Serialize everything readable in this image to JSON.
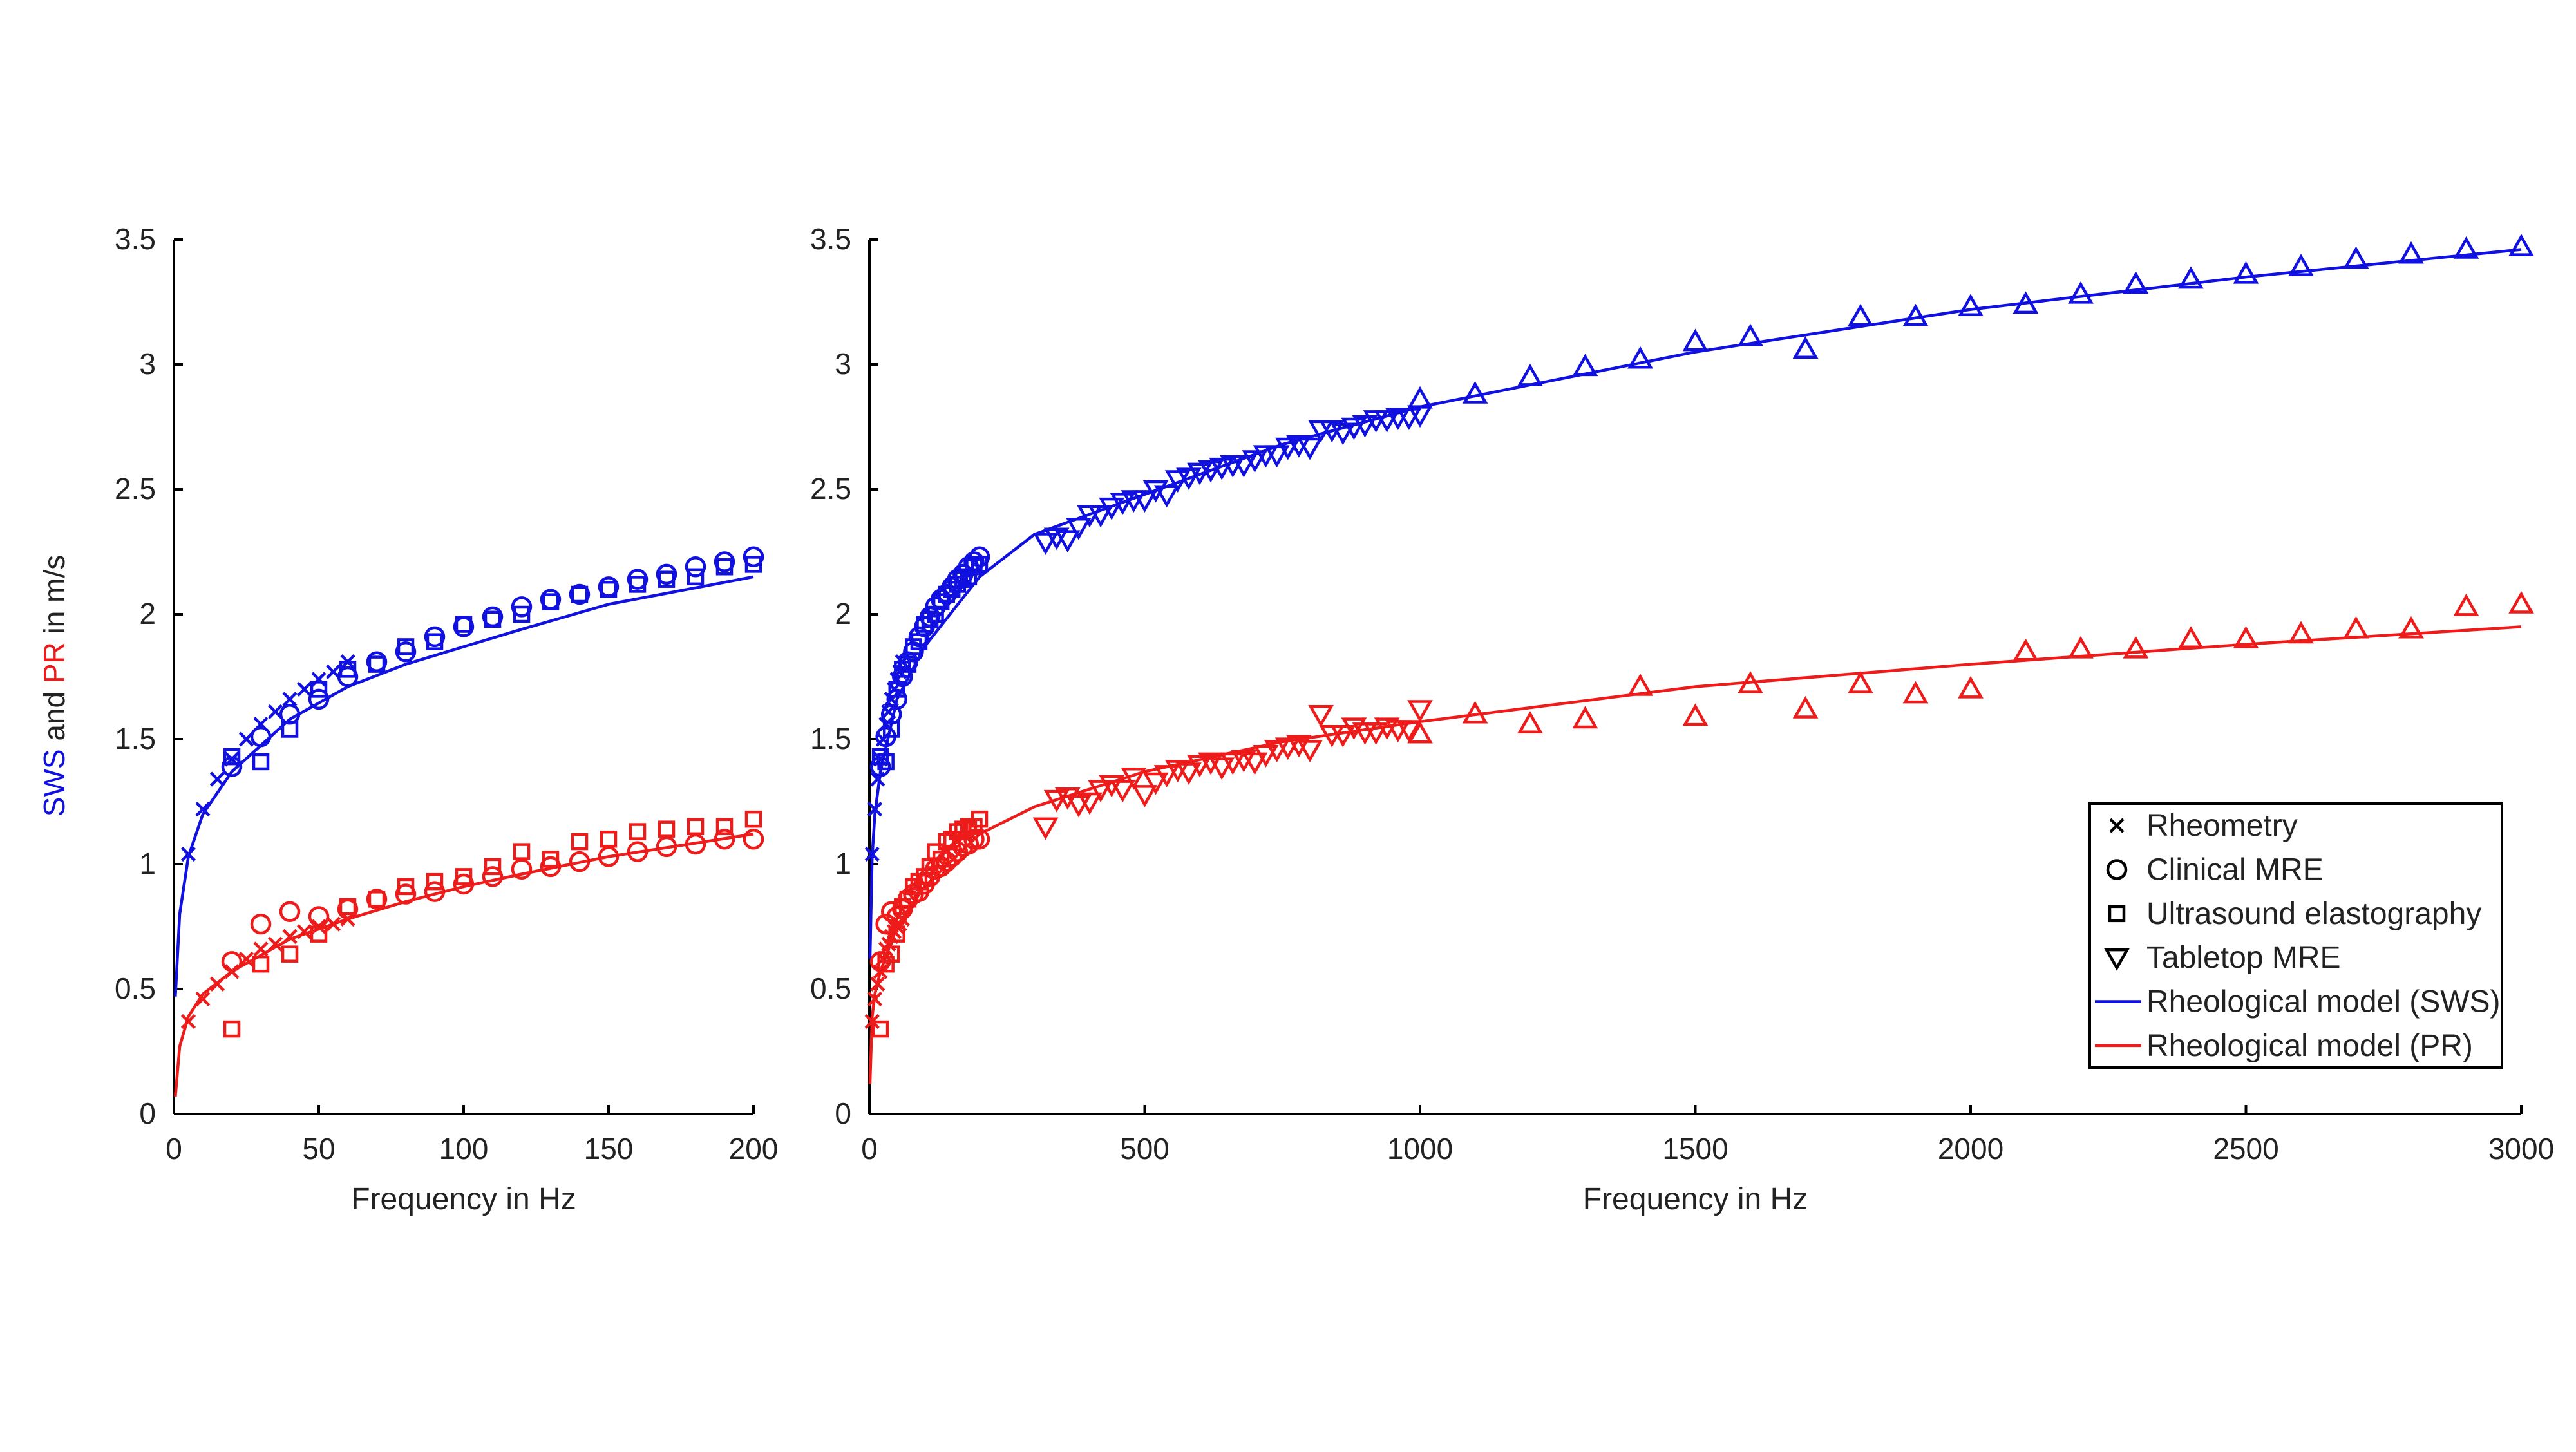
{
  "ylabel": {
    "sws": "SWS",
    "and": " and ",
    "pr": "PR",
    "units": " in m/s"
  },
  "colors": {
    "sws": "#1010e0",
    "pr": "#ee1b1b",
    "axis": "#000000"
  },
  "legend": [
    {
      "label": "Rheometry",
      "marker": "x"
    },
    {
      "label": "Clinical MRE",
      "marker": "circle"
    },
    {
      "label": "Ultrasound elastography",
      "marker": "square"
    },
    {
      "label": "Tabletop MRE",
      "marker": "triangle-down"
    },
    {
      "label": "Rheological model (SWS)",
      "marker": "line-sws"
    },
    {
      "label": "Rheological model (PR)",
      "marker": "line-pr"
    }
  ],
  "chart_data": [
    {
      "type": "scatter",
      "xlabel": "Frequency in Hz",
      "xlim": [
        0,
        200
      ],
      "ylim": [
        0,
        3.5
      ],
      "xticks": [
        0,
        50,
        100,
        150,
        200
      ],
      "xtick_labels": [
        "0",
        "50",
        "100",
        "150",
        "200"
      ],
      "yticks": [
        0,
        0.5,
        1,
        1.5,
        2,
        2.5,
        3,
        3.5
      ],
      "ytick_labels": [
        "0",
        "0.5",
        "1",
        "1.5",
        "2",
        "2.5",
        "3",
        "3.5"
      ],
      "grid": false,
      "series": [
        {
          "name": "Rheometry",
          "property": "SWS",
          "marker": "x",
          "x": [
            5,
            10,
            15,
            20,
            25,
            30,
            35,
            40,
            45,
            50,
            55,
            60
          ],
          "y": [
            1.04,
            1.22,
            1.34,
            1.42,
            1.5,
            1.56,
            1.61,
            1.66,
            1.7,
            1.74,
            1.77,
            1.81
          ]
        },
        {
          "name": "Clinical MRE",
          "property": "SWS",
          "marker": "circle",
          "x": [
            20,
            30,
            40,
            50,
            60,
            70,
            80,
            90,
            100,
            110,
            120,
            130,
            140,
            150,
            160,
            170,
            180,
            190,
            200
          ],
          "y": [
            1.39,
            1.51,
            1.6,
            1.66,
            1.75,
            1.81,
            1.85,
            1.91,
            1.95,
            1.99,
            2.03,
            2.06,
            2.08,
            2.11,
            2.14,
            2.16,
            2.19,
            2.21,
            2.23
          ]
        },
        {
          "name": "Ultrasound elastography",
          "property": "SWS",
          "marker": "square",
          "x": [
            20,
            30,
            40,
            50,
            60,
            70,
            80,
            90,
            100,
            110,
            120,
            130,
            140,
            150,
            160,
            170,
            180,
            190,
            200
          ],
          "y": [
            1.43,
            1.41,
            1.54,
            1.7,
            1.78,
            1.8,
            1.87,
            1.89,
            1.96,
            1.98,
            2.0,
            2.05,
            2.08,
            2.1,
            2.12,
            2.14,
            2.15,
            2.19,
            2.2
          ]
        },
        {
          "name": "Rheometry",
          "property": "PR",
          "marker": "x",
          "x": [
            5,
            10,
            15,
            20,
            25,
            30,
            35,
            40,
            45,
            50,
            55,
            60
          ],
          "y": [
            0.37,
            0.46,
            0.52,
            0.57,
            0.62,
            0.66,
            0.68,
            0.71,
            0.73,
            0.75,
            0.76,
            0.78
          ]
        },
        {
          "name": "Clinical MRE",
          "property": "PR",
          "marker": "circle",
          "x": [
            20,
            30,
            40,
            50,
            60,
            70,
            80,
            90,
            100,
            110,
            120,
            130,
            140,
            150,
            160,
            170,
            180,
            190,
            200
          ],
          "y": [
            0.61,
            0.76,
            0.81,
            0.79,
            0.82,
            0.86,
            0.88,
            0.89,
            0.92,
            0.95,
            0.98,
            0.99,
            1.01,
            1.03,
            1.05,
            1.07,
            1.08,
            1.1,
            1.1
          ]
        },
        {
          "name": "Ultrasound elastography",
          "property": "PR",
          "marker": "square",
          "x": [
            20,
            30,
            40,
            50,
            60,
            70,
            80,
            90,
            100,
            110,
            120,
            130,
            140,
            150,
            160,
            170,
            180,
            190,
            200
          ],
          "y": [
            0.34,
            0.6,
            0.64,
            0.72,
            0.83,
            0.86,
            0.91,
            0.93,
            0.95,
            0.99,
            1.05,
            1.02,
            1.09,
            1.1,
            1.13,
            1.14,
            1.15,
            1.15,
            1.18
          ]
        }
      ],
      "model_curves": [
        {
          "name": "Rheological model (SWS)",
          "property": "SWS",
          "x": [
            0.5,
            2,
            5,
            10,
            20,
            40,
            60,
            80,
            100,
            120,
            150,
            200
          ],
          "y": [
            0.47,
            0.8,
            1.03,
            1.2,
            1.37,
            1.58,
            1.71,
            1.8,
            1.87,
            1.94,
            2.04,
            2.15
          ]
        },
        {
          "name": "Rheological model (PR)",
          "property": "PR",
          "x": [
            0.5,
            2,
            5,
            10,
            20,
            40,
            60,
            80,
            100,
            120,
            150,
            200
          ],
          "y": [
            0.07,
            0.27,
            0.39,
            0.48,
            0.57,
            0.7,
            0.78,
            0.85,
            0.91,
            0.96,
            1.03,
            1.12
          ]
        }
      ]
    },
    {
      "type": "scatter",
      "xlabel": "Frequency in Hz",
      "xlim": [
        0,
        3000
      ],
      "ylim": [
        0,
        3.5
      ],
      "xticks": [
        0,
        500,
        1000,
        1500,
        2000,
        2500,
        3000
      ],
      "xtick_labels": [
        "0",
        "500",
        "1000",
        "1500",
        "2000",
        "2500",
        "3000"
      ],
      "yticks": [
        0,
        0.5,
        1,
        1.5,
        2,
        2.5,
        3,
        3.5
      ],
      "ytick_labels": [
        "0",
        "0.5",
        "1",
        "1.5",
        "2",
        "2.5",
        "3",
        "3.5"
      ],
      "grid": false,
      "legend_position": "lower-right",
      "series": [
        {
          "name": "Rheometry",
          "property": "SWS",
          "marker": "x",
          "x": [
            5,
            10,
            15,
            20,
            25,
            30,
            35,
            40,
            45,
            50,
            55,
            60
          ],
          "y": [
            1.04,
            1.22,
            1.34,
            1.42,
            1.5,
            1.56,
            1.61,
            1.66,
            1.7,
            1.74,
            1.77,
            1.81
          ]
        },
        {
          "name": "Clinical MRE",
          "property": "SWS",
          "marker": "circle",
          "x": [
            20,
            30,
            40,
            50,
            60,
            70,
            80,
            90,
            100,
            110,
            120,
            130,
            140,
            150,
            160,
            170,
            180,
            190,
            200
          ],
          "y": [
            1.39,
            1.51,
            1.6,
            1.66,
            1.75,
            1.81,
            1.85,
            1.91,
            1.95,
            1.99,
            2.03,
            2.06,
            2.08,
            2.11,
            2.14,
            2.16,
            2.19,
            2.21,
            2.23
          ]
        },
        {
          "name": "Ultrasound elastography",
          "property": "SWS",
          "marker": "square",
          "x": [
            20,
            30,
            40,
            50,
            60,
            70,
            80,
            90,
            100,
            110,
            120,
            130,
            140,
            150,
            160,
            170,
            180,
            190,
            200
          ],
          "y": [
            1.43,
            1.41,
            1.54,
            1.7,
            1.78,
            1.8,
            1.87,
            1.89,
            1.96,
            1.98,
            2.0,
            2.05,
            2.08,
            2.1,
            2.12,
            2.14,
            2.15,
            2.19,
            2.2
          ]
        },
        {
          "name": "Tabletop MRE",
          "property": "SWS",
          "marker": "triangle-down",
          "x": [
            320,
            340,
            360,
            380,
            400,
            420,
            440,
            460,
            480,
            500,
            520,
            540,
            560,
            580,
            600,
            620,
            640,
            660,
            680,
            700,
            720,
            740,
            760,
            780,
            800,
            820,
            840,
            860,
            880,
            900,
            920,
            940,
            960,
            980,
            1000
          ],
          "y": [
            2.29,
            2.31,
            2.3,
            2.35,
            2.4,
            2.4,
            2.43,
            2.45,
            2.46,
            2.46,
            2.5,
            2.48,
            2.54,
            2.55,
            2.57,
            2.58,
            2.59,
            2.6,
            2.6,
            2.62,
            2.64,
            2.64,
            2.67,
            2.68,
            2.67,
            2.74,
            2.74,
            2.73,
            2.75,
            2.76,
            2.78,
            2.78,
            2.79,
            2.79,
            2.8
          ]
        },
        {
          "name": "Tabletop MRE",
          "property": "SWS",
          "marker": "triangle-up",
          "x": [
            1000,
            1100,
            1200,
            1300,
            1400,
            1500,
            1600,
            1700,
            1800,
            1900,
            2000,
            2100,
            2200,
            2300,
            2400,
            2500,
            2600,
            2700,
            2800,
            2900,
            3000
          ],
          "y": [
            2.86,
            2.88,
            2.95,
            2.99,
            3.02,
            3.09,
            3.11,
            3.06,
            3.19,
            3.19,
            3.23,
            3.24,
            3.28,
            3.32,
            3.34,
            3.36,
            3.39,
            3.42,
            3.44,
            3.46,
            3.47
          ]
        },
        {
          "name": "Rheometry",
          "property": "PR",
          "marker": "x",
          "x": [
            5,
            10,
            15,
            20,
            25,
            30,
            35,
            40,
            45,
            50,
            55,
            60
          ],
          "y": [
            0.37,
            0.46,
            0.52,
            0.57,
            0.62,
            0.66,
            0.68,
            0.71,
            0.73,
            0.75,
            0.76,
            0.78
          ]
        },
        {
          "name": "Clinical MRE",
          "property": "PR",
          "marker": "circle",
          "x": [
            20,
            30,
            40,
            50,
            60,
            70,
            80,
            90,
            100,
            110,
            120,
            130,
            140,
            150,
            160,
            170,
            180,
            190,
            200
          ],
          "y": [
            0.61,
            0.76,
            0.81,
            0.79,
            0.82,
            0.86,
            0.88,
            0.89,
            0.92,
            0.95,
            0.98,
            0.99,
            1.01,
            1.03,
            1.05,
            1.07,
            1.08,
            1.1,
            1.1
          ]
        },
        {
          "name": "Ultrasound elastography",
          "property": "PR",
          "marker": "square",
          "x": [
            20,
            30,
            40,
            50,
            60,
            70,
            80,
            90,
            100,
            110,
            120,
            130,
            140,
            150,
            160,
            170,
            180,
            190,
            200
          ],
          "y": [
            0.34,
            0.6,
            0.64,
            0.72,
            0.83,
            0.86,
            0.91,
            0.93,
            0.95,
            0.99,
            1.05,
            1.02,
            1.09,
            1.1,
            1.13,
            1.14,
            1.15,
            1.15,
            1.18
          ]
        },
        {
          "name": "Tabletop MRE",
          "property": "PR",
          "marker": "triangle-down",
          "x": [
            320,
            340,
            360,
            380,
            400,
            420,
            440,
            460,
            480,
            500,
            520,
            540,
            560,
            580,
            600,
            620,
            640,
            660,
            680,
            700,
            720,
            740,
            760,
            780,
            800,
            820,
            840,
            860,
            880,
            900,
            920,
            940,
            960,
            980,
            1000
          ],
          "y": [
            1.15,
            1.26,
            1.27,
            1.24,
            1.25,
            1.3,
            1.32,
            1.3,
            1.35,
            1.28,
            1.33,
            1.36,
            1.38,
            1.37,
            1.4,
            1.41,
            1.39,
            1.41,
            1.42,
            1.41,
            1.44,
            1.46,
            1.47,
            1.48,
            1.46,
            1.6,
            1.52,
            1.52,
            1.55,
            1.53,
            1.53,
            1.55,
            1.54,
            1.54,
            1.62
          ]
        },
        {
          "name": "Tabletop MRE",
          "property": "PR",
          "marker": "triangle-up",
          "x": [
            1000,
            1100,
            1200,
            1300,
            1400,
            1500,
            1600,
            1700,
            1800,
            1900,
            2000,
            2100,
            2200,
            2300,
            2400,
            2500,
            2600,
            2700,
            2800,
            2900,
            3000
          ],
          "y": [
            1.52,
            1.6,
            1.56,
            1.58,
            1.71,
            1.59,
            1.72,
            1.62,
            1.72,
            1.68,
            1.7,
            1.85,
            1.86,
            1.86,
            1.9,
            1.9,
            1.92,
            1.94,
            1.94,
            2.03,
            2.04
          ]
        }
      ],
      "model_curves": [
        {
          "name": "Rheological model (SWS)",
          "property": "SWS",
          "x": [
            1,
            5,
            10,
            20,
            50,
            100,
            200,
            300,
            500,
            750,
            1000,
            1500,
            2000,
            2500,
            3000
          ],
          "y": [
            0.62,
            1.03,
            1.2,
            1.37,
            1.66,
            1.87,
            2.15,
            2.32,
            2.48,
            2.68,
            2.83,
            3.05,
            3.22,
            3.35,
            3.46
          ]
        },
        {
          "name": "Rheological model (PR)",
          "property": "PR",
          "x": [
            1,
            5,
            10,
            20,
            50,
            100,
            200,
            300,
            500,
            750,
            1000,
            1500,
            2000,
            2500,
            3000
          ],
          "y": [
            0.12,
            0.39,
            0.48,
            0.57,
            0.75,
            0.91,
            1.12,
            1.23,
            1.37,
            1.49,
            1.57,
            1.71,
            1.8,
            1.88,
            1.95
          ]
        }
      ]
    }
  ]
}
